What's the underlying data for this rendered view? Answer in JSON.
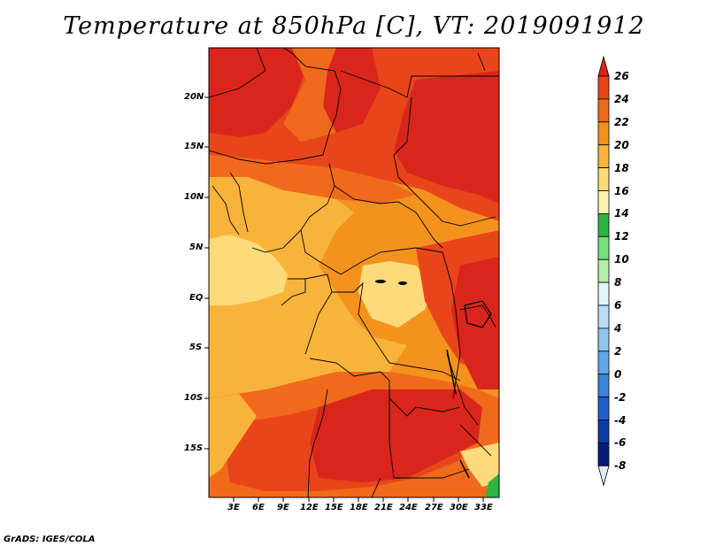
{
  "title": "Temperature at 850hPa [C], VT: 2019091912",
  "credit": "GrADS: IGES/COLA",
  "lat_labels": [
    "20N",
    "15N",
    "10N",
    "5N",
    "EQ",
    "5S",
    "10S",
    "15S"
  ],
  "lon_labels": [
    "3E",
    "6E",
    "9E",
    "12E",
    "15E",
    "18E",
    "21E",
    "24E",
    "27E",
    "30E",
    "33E"
  ],
  "colorbar": {
    "levels": [
      "26",
      "24",
      "22",
      "20",
      "18",
      "16",
      "14",
      "12",
      "10",
      "8",
      "6",
      "4",
      "2",
      "0",
      "-2",
      "-4",
      "-6",
      "-8"
    ],
    "colors": [
      "#d9261c",
      "#e8461a",
      "#f06a1c",
      "#f4921e",
      "#f8b43a",
      "#fddb7a",
      "#fdf3b3",
      "#2fb443",
      "#78e07a",
      "#b0f0a8",
      "#e2f6fa",
      "#b8ddf5",
      "#8fc4ee",
      "#62a6e6",
      "#3c84dc",
      "#1e60c8",
      "#0e3ca4",
      "#0a1c7a",
      "#071060"
    ]
  },
  "map_colors": {
    "c16": "#fddb7a",
    "c18": "#f8b43a",
    "c20": "#f4921e",
    "c22": "#f06a1c",
    "c24": "#e8461a",
    "c26": "#d9261c",
    "c12": "#2fb443"
  }
}
